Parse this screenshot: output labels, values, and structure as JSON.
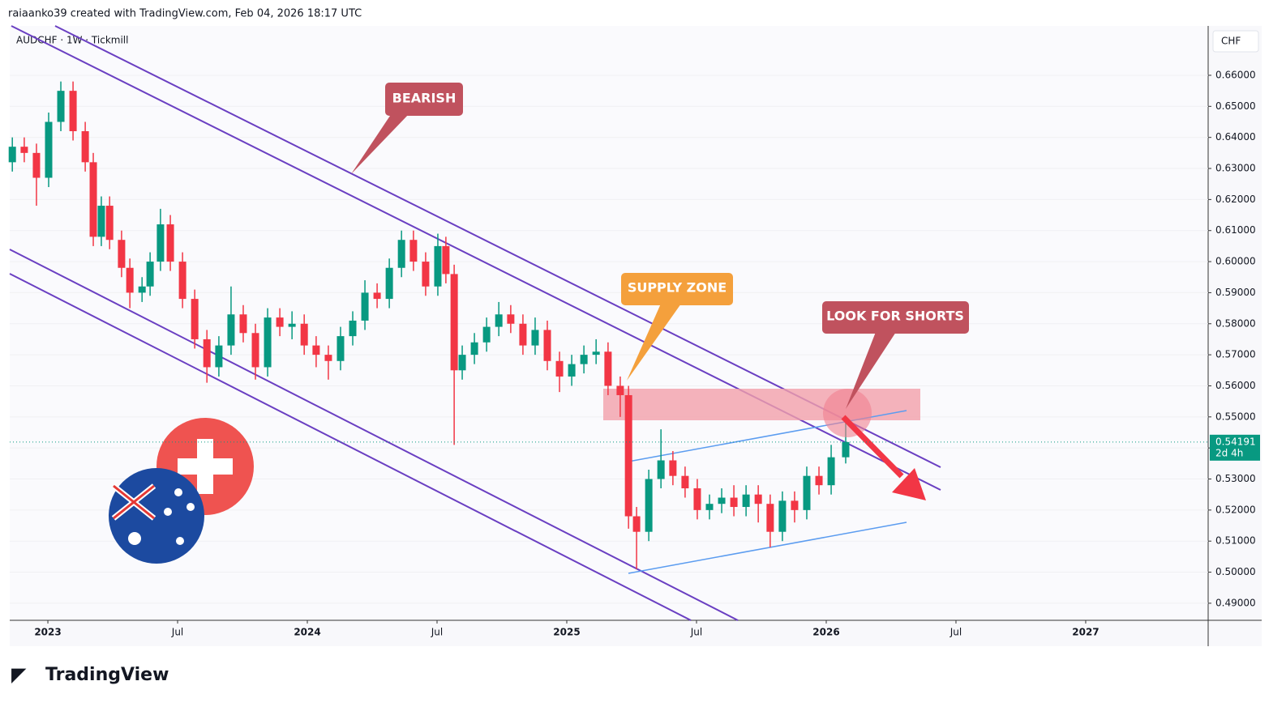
{
  "header": "raiaanko39 created with TradingView.com, Feb 04, 2026 18:17 UTC",
  "brand": "TradingView",
  "chart_data": {
    "type": "candlestick",
    "title": "AUDCHF · 1W · Tickmill",
    "currency": "CHF",
    "up_color": "#089981",
    "down_color": "#f23645",
    "x": [
      2022.863,
      2022.909,
      2022.956,
      2023.003,
      2023.05,
      2023.097,
      2023.144,
      2023.175,
      2023.206,
      2023.238,
      2023.284,
      2023.316,
      2023.363,
      2023.394,
      2023.434,
      2023.472,
      2023.519,
      2023.566,
      2023.613,
      2023.659,
      2023.706,
      2023.753,
      2023.8,
      2023.847,
      2023.894,
      2023.941,
      2023.988,
      2024.034,
      2024.081,
      2024.128,
      2024.175,
      2024.222,
      2024.269,
      2024.316,
      2024.363,
      2024.409,
      2024.456,
      2024.503,
      2024.534,
      2024.566,
      2024.597,
      2024.644,
      2024.691,
      2024.738,
      2024.784,
      2024.831,
      2024.878,
      2024.925,
      2024.972,
      2025.019,
      2025.066,
      2025.113,
      2025.159,
      2025.206,
      2025.238,
      2025.269,
      2025.316,
      2025.363,
      2025.409,
      2025.456,
      2025.503,
      2025.55,
      2025.597,
      2025.644,
      2025.691,
      2025.738,
      2025.784,
      2025.831,
      2025.878,
      2025.925,
      2025.972,
      2026.019,
      2026.075
    ],
    "open": [
      0.632,
      0.637,
      0.635,
      0.627,
      0.645,
      0.655,
      0.642,
      0.632,
      0.608,
      0.618,
      0.607,
      0.598,
      0.59,
      0.592,
      0.6,
      0.612,
      0.6,
      0.588,
      0.575,
      0.566,
      0.573,
      0.583,
      0.577,
      0.566,
      0.582,
      0.579,
      0.58,
      0.573,
      0.57,
      0.568,
      0.576,
      0.581,
      0.59,
      0.588,
      0.598,
      0.607,
      0.6,
      0.592,
      0.605,
      0.596,
      0.565,
      0.57,
      0.574,
      0.579,
      0.583,
      0.58,
      0.573,
      0.578,
      0.568,
      0.563,
      0.567,
      0.57,
      0.571,
      0.56,
      0.557,
      0.518,
      0.513,
      0.53,
      0.536,
      0.531,
      0.527,
      0.52,
      0.522,
      0.524,
      0.521,
      0.525,
      0.522,
      0.513,
      0.523,
      0.52,
      0.531,
      0.528,
      0.537
    ],
    "high": [
      0.64,
      0.64,
      0.638,
      0.648,
      0.658,
      0.658,
      0.645,
      0.635,
      0.621,
      0.621,
      0.61,
      0.601,
      0.595,
      0.603,
      0.617,
      0.615,
      0.603,
      0.591,
      0.578,
      0.576,
      0.592,
      0.586,
      0.58,
      0.585,
      0.585,
      0.584,
      0.583,
      0.576,
      0.573,
      0.579,
      0.584,
      0.594,
      0.593,
      0.601,
      0.61,
      0.61,
      0.603,
      0.609,
      0.608,
      0.599,
      0.573,
      0.577,
      0.582,
      0.587,
      0.586,
      0.583,
      0.582,
      0.581,
      0.571,
      0.57,
      0.573,
      0.575,
      0.574,
      0.563,
      0.56,
      0.521,
      0.533,
      0.546,
      0.539,
      0.534,
      0.53,
      0.525,
      0.527,
      0.528,
      0.528,
      0.528,
      0.525,
      0.526,
      0.526,
      0.534,
      0.534,
      0.541,
      0.549
    ],
    "low": [
      0.629,
      0.632,
      0.618,
      0.624,
      0.642,
      0.639,
      0.629,
      0.605,
      0.605,
      0.604,
      0.595,
      0.585,
      0.587,
      0.589,
      0.597,
      0.597,
      0.585,
      0.572,
      0.561,
      0.563,
      0.57,
      0.574,
      0.562,
      0.563,
      0.576,
      0.575,
      0.57,
      0.566,
      0.562,
      0.565,
      0.573,
      0.578,
      0.585,
      0.585,
      0.595,
      0.597,
      0.589,
      0.589,
      0.593,
      0.541,
      0.562,
      0.567,
      0.571,
      0.576,
      0.577,
      0.57,
      0.57,
      0.565,
      0.558,
      0.56,
      0.564,
      0.567,
      0.557,
      0.55,
      0.514,
      0.501,
      0.51,
      0.527,
      0.528,
      0.524,
      0.517,
      0.517,
      0.519,
      0.518,
      0.518,
      0.516,
      0.508,
      0.51,
      0.516,
      0.517,
      0.525,
      0.525,
      0.535
    ],
    "close": [
      0.637,
      0.635,
      0.627,
      0.645,
      0.655,
      0.642,
      0.632,
      0.608,
      0.618,
      0.607,
      0.598,
      0.59,
      0.592,
      0.6,
      0.612,
      0.6,
      0.588,
      0.575,
      0.566,
      0.573,
      0.583,
      0.577,
      0.566,
      0.582,
      0.579,
      0.58,
      0.573,
      0.57,
      0.568,
      0.576,
      0.581,
      0.59,
      0.588,
      0.598,
      0.607,
      0.6,
      0.592,
      0.605,
      0.596,
      0.565,
      0.57,
      0.574,
      0.579,
      0.583,
      0.58,
      0.573,
      0.578,
      0.568,
      0.563,
      0.567,
      0.57,
      0.571,
      0.56,
      0.557,
      0.518,
      0.513,
      0.53,
      0.536,
      0.531,
      0.527,
      0.52,
      0.522,
      0.524,
      0.521,
      0.525,
      0.522,
      0.513,
      0.523,
      0.52,
      0.531,
      0.528,
      0.537,
      0.5419
    ],
    "last_price": 0.54191,
    "countdown": "2d 4h",
    "xlim": [
      2022.853,
      2027.472
    ],
    "ylim": [
      0.4845,
      0.6759
    ],
    "xticks": [
      {
        "value": 2023,
        "label": "2023"
      },
      {
        "value": 2023.5,
        "label": "Jul"
      },
      {
        "value": 2024,
        "label": "2024"
      },
      {
        "value": 2024.5,
        "label": "Jul"
      },
      {
        "value": 2025,
        "label": "2025"
      },
      {
        "value": 2025.5,
        "label": "Jul"
      },
      {
        "value": 2026,
        "label": "2026"
      },
      {
        "value": 2026.5,
        "label": "Jul"
      },
      {
        "value": 2027,
        "label": "2027"
      }
    ],
    "yticks": [
      {
        "value": 0.49,
        "label": "0.49000"
      },
      {
        "value": 0.5,
        "label": "0.50000"
      },
      {
        "value": 0.51,
        "label": "0.51000"
      },
      {
        "value": 0.52,
        "label": "0.52000"
      },
      {
        "value": 0.53,
        "label": "0.53000"
      },
      {
        "value": 0.54,
        "label": "0.54000"
      },
      {
        "value": 0.55,
        "label": "0.55000"
      },
      {
        "value": 0.56,
        "label": "0.56000"
      },
      {
        "value": 0.57,
        "label": "0.57000"
      },
      {
        "value": 0.58,
        "label": "0.58000"
      },
      {
        "value": 0.59,
        "label": "0.59000"
      },
      {
        "value": 0.6,
        "label": "0.60000"
      },
      {
        "value": 0.61,
        "label": "0.61000"
      },
      {
        "value": 0.62,
        "label": "0.62000"
      },
      {
        "value": 0.63,
        "label": "0.63000"
      },
      {
        "value": 0.64,
        "label": "0.64000"
      },
      {
        "value": 0.65,
        "label": "0.65000"
      },
      {
        "value": 0.66,
        "label": "0.66000"
      }
    ],
    "annotations": [
      "BEARISH",
      "SUPPLY ZONE",
      "LOOK FOR SHORTS"
    ]
  }
}
